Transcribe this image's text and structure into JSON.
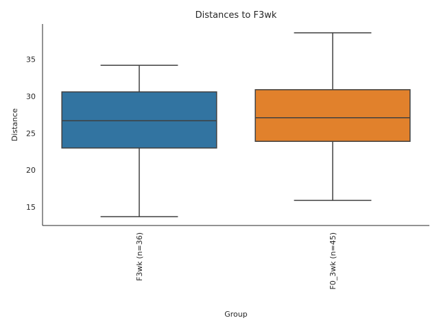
{
  "chart_data": {
    "type": "box",
    "title": "Distances to F3wk",
    "xlabel": "Group",
    "ylabel": "Distance",
    "ylim": [
      12.5,
      39.8
    ],
    "yticks": [
      15,
      20,
      25,
      30,
      35
    ],
    "grid": false,
    "categories": [
      "F3wk (n=36)",
      "F0_3wk (n=45)"
    ],
    "boxes": [
      {
        "name": "F3wk (n=36)",
        "min": 13.7,
        "q1": 23.0,
        "median": 26.7,
        "q3": 30.6,
        "max": 34.2,
        "color": "#3274a1"
      },
      {
        "name": "F0_3wk (n=45)",
        "min": 15.9,
        "q1": 23.9,
        "median": 27.1,
        "q3": 30.9,
        "max": 38.6,
        "color": "#e1812c"
      }
    ]
  }
}
